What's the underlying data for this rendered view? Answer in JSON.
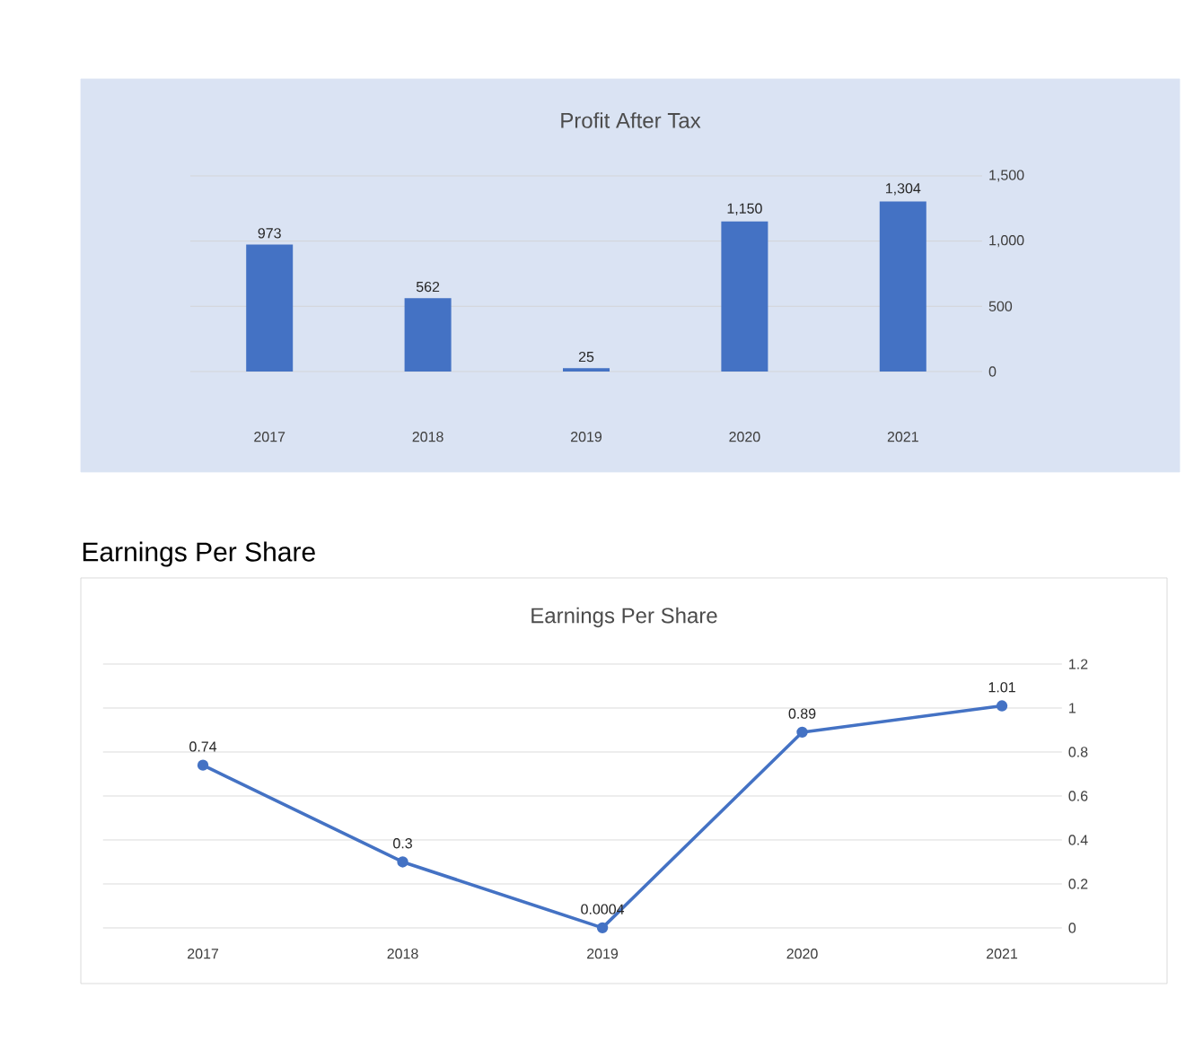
{
  "chart_data": [
    {
      "type": "bar",
      "title": "Profit After Tax",
      "categories": [
        "2017",
        "2018",
        "2019",
        "2020",
        "2021"
      ],
      "values": [
        973,
        562,
        25,
        1150,
        1304
      ],
      "color": "#4472c4",
      "value_labels": [
        "973",
        "562",
        "25",
        "1,150",
        "1,304"
      ],
      "ylim": [
        0,
        1500
      ],
      "yticks": [
        0,
        500,
        {
          "value": 1000,
          "label": "1,000"
        },
        {
          "value": 1500,
          "label": "1,500"
        }
      ],
      "grid": "y"
    },
    {
      "type": "line",
      "title": "Earnings Per Share",
      "annotations": [
        "Earnings Per Share"
      ],
      "categories": [
        "2017",
        "2018",
        "2019",
        "2020",
        "2021"
      ],
      "values": [
        0.74,
        0.3,
        0.0004,
        0.89,
        1.01
      ],
      "color": "#4472c4",
      "value_labels": [
        "0.74",
        "0.3",
        "0.0004",
        "0.89",
        "1.01"
      ],
      "ylim": [
        0,
        1.2
      ],
      "yticks": [
        0,
        0.2,
        0.4,
        0.6,
        0.8,
        1,
        1.2
      ],
      "grid": "y",
      "marker": "circle"
    }
  ]
}
